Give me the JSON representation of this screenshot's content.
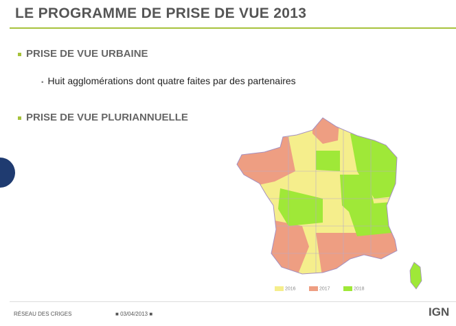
{
  "header": {
    "title": "LE PROGRAMME DE PRISE DE VUE 2013"
  },
  "sections": [
    {
      "heading": "PRISE DE VUE URBAINE",
      "items": [
        "Huit agglomérations dont quatre faites par des partenaires"
      ]
    },
    {
      "heading": "PRISE DE VUE PLURIANNUELLE",
      "items": []
    }
  ],
  "legend": [
    "2016",
    "2017",
    "2018"
  ],
  "footer": {
    "left": "RÉSEAU DES CRIGES",
    "date": "03/04/2013",
    "logo": "IGN"
  }
}
